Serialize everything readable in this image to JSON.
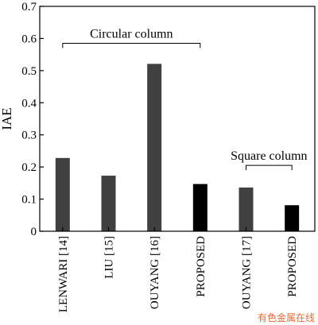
{
  "chart_data": {
    "type": "bar",
    "title": "",
    "xlabel": "",
    "ylabel": "IAE",
    "ylim": [
      0,
      0.7
    ],
    "yticks": [
      "0",
      "0.1",
      "0.2",
      "0.3",
      "0.4",
      "0.5",
      "0.6",
      "0.7"
    ],
    "grid": false,
    "categories": [
      "LENWARI [14]",
      "LIU [15]",
      "OUYANG [16]",
      "PROPOSED",
      "OUYANG [17]",
      "PROPOSED"
    ],
    "values": [
      0.228,
      0.173,
      0.521,
      0.147,
      0.136,
      0.081
    ],
    "bar_colors": [
      "#404040",
      "#404040",
      "#404040",
      "#000000",
      "#404040",
      "#000000"
    ],
    "groups": [
      {
        "label": "Circular column",
        "start": 0,
        "end": 3
      },
      {
        "label": "Square column",
        "start": 4,
        "end": 5
      }
    ]
  },
  "watermark": "有色金属在线"
}
